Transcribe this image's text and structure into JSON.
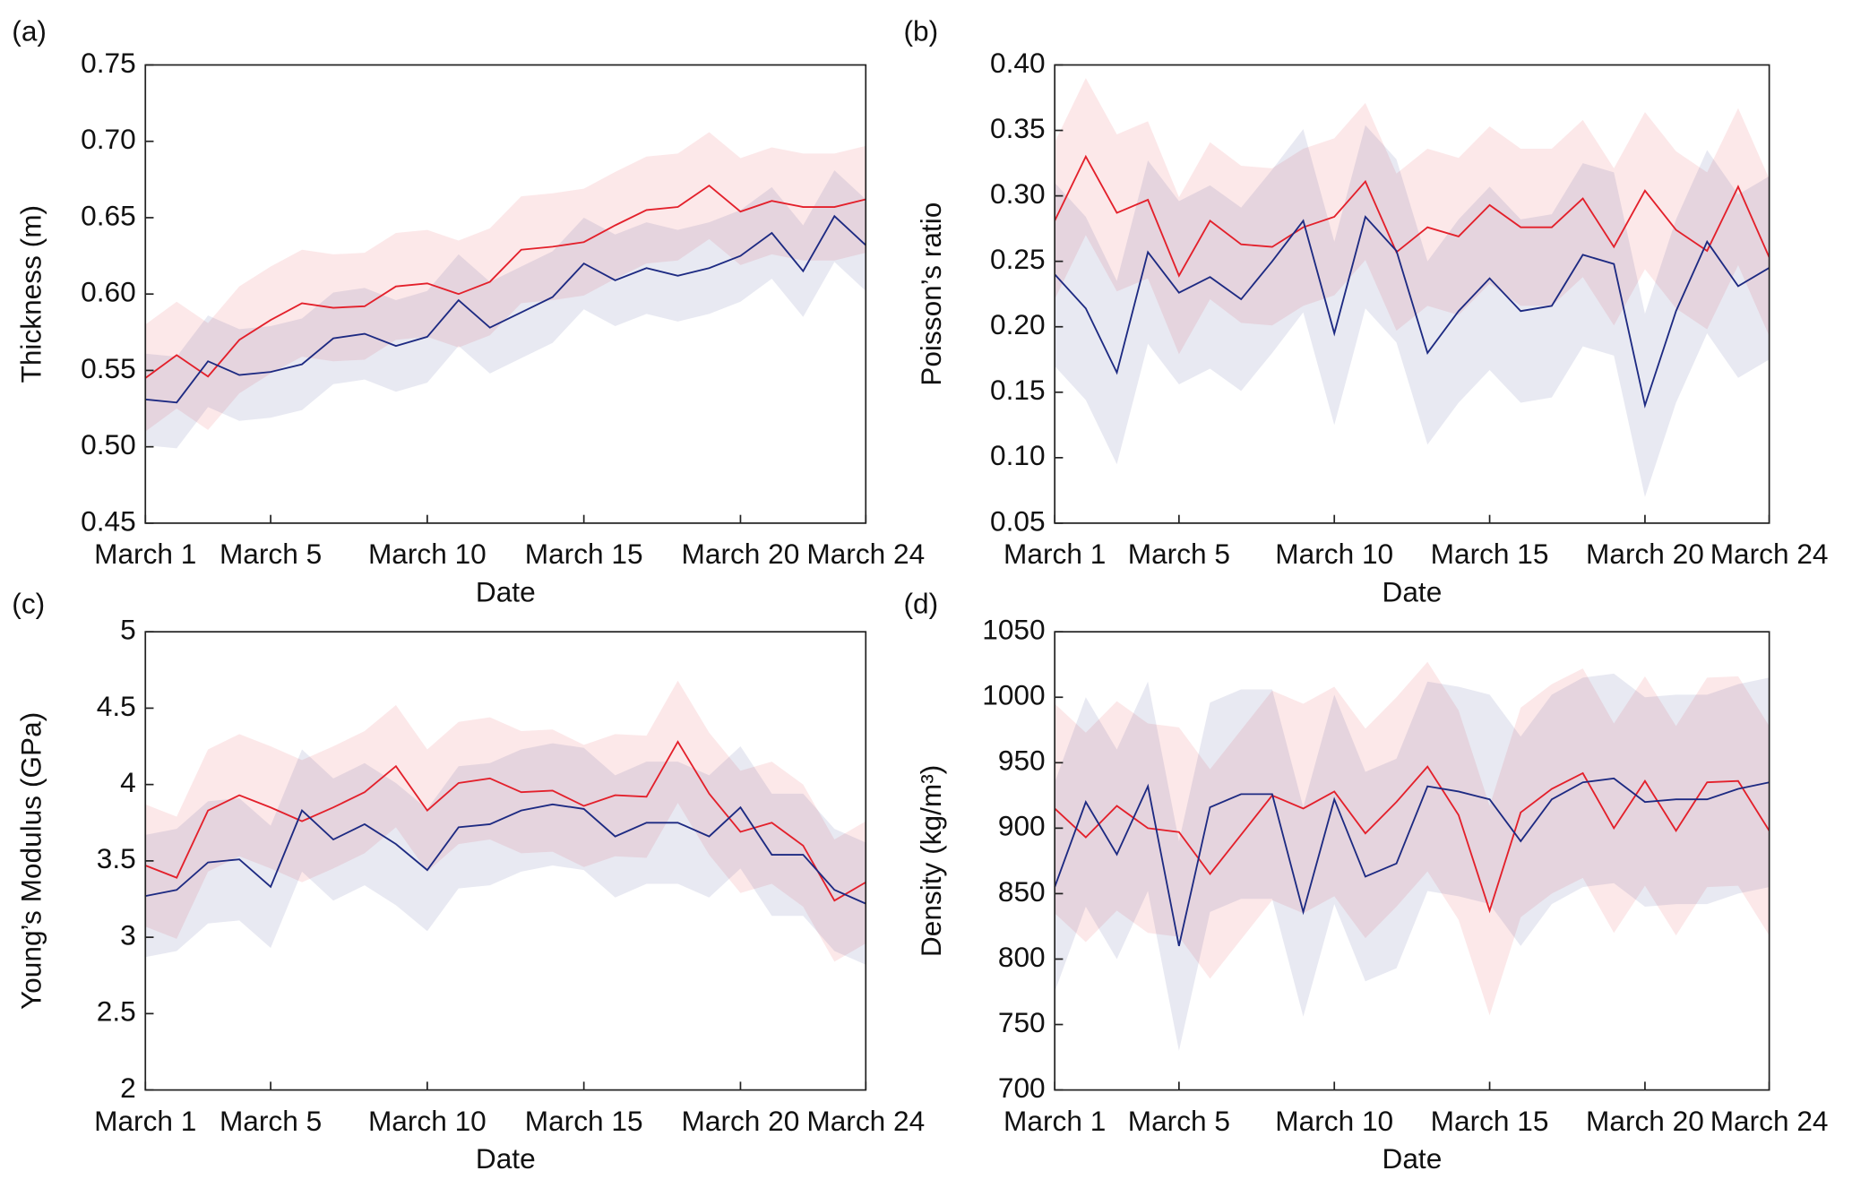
{
  "chart_data": [
    {
      "type": "line",
      "panel": "(a)",
      "y_label": "Thickness (m)",
      "x_label": "Date",
      "categories": [
        "March 1",
        null,
        null,
        null,
        "March 5",
        null,
        null,
        null,
        null,
        "March 10",
        null,
        null,
        null,
        null,
        "March 15",
        null,
        null,
        null,
        null,
        "March 20",
        null,
        null,
        null,
        "March 24"
      ],
      "ylim": [
        0.45,
        0.75
      ],
      "yticks": [
        {
          "value": 0.45,
          "label": "0.45"
        },
        {
          "value": 0.5,
          "label": "0.50"
        },
        {
          "value": 0.55,
          "label": "0.55"
        },
        {
          "value": 0.6,
          "label": "0.60"
        },
        {
          "value": 0.65,
          "label": "0.65"
        },
        {
          "value": 0.7,
          "label": "0.70"
        },
        {
          "value": 0.75,
          "label": "0.75"
        }
      ],
      "series": [
        {
          "color": "#e3202b",
          "values": [
            0.545,
            0.56,
            0.546,
            0.57,
            0.583,
            0.594,
            0.591,
            0.592,
            0.605,
            0.607,
            0.6,
            0.608,
            0.629,
            0.631,
            0.634,
            0.645,
            0.655,
            0.657,
            0.671,
            0.654,
            0.661,
            0.657,
            0.657,
            0.662
          ],
          "lower": [
            0.51,
            0.525,
            0.511,
            0.535,
            0.548,
            0.559,
            0.556,
            0.557,
            0.57,
            0.572,
            0.565,
            0.573,
            0.594,
            0.596,
            0.599,
            0.61,
            0.62,
            0.622,
            0.636,
            0.619,
            0.626,
            0.622,
            0.622,
            0.627
          ],
          "upper": [
            0.58,
            0.595,
            0.581,
            0.605,
            0.618,
            0.629,
            0.626,
            0.627,
            0.64,
            0.642,
            0.635,
            0.643,
            0.664,
            0.666,
            0.669,
            0.68,
            0.69,
            0.692,
            0.706,
            0.689,
            0.696,
            0.692,
            0.692,
            0.697
          ]
        },
        {
          "color": "#1d2a82",
          "values": [
            0.531,
            0.529,
            0.556,
            0.547,
            0.549,
            0.554,
            0.571,
            0.574,
            0.566,
            0.572,
            0.596,
            0.578,
            0.588,
            0.598,
            0.62,
            0.609,
            0.617,
            0.612,
            0.617,
            0.625,
            0.64,
            0.615,
            0.651,
            0.632
          ],
          "lower": [
            0.501,
            0.499,
            0.526,
            0.517,
            0.519,
            0.524,
            0.541,
            0.544,
            0.536,
            0.542,
            0.566,
            0.548,
            0.558,
            0.568,
            0.59,
            0.579,
            0.587,
            0.582,
            0.587,
            0.595,
            0.61,
            0.585,
            0.621,
            0.602
          ],
          "upper": [
            0.561,
            0.559,
            0.586,
            0.577,
            0.579,
            0.584,
            0.601,
            0.604,
            0.596,
            0.602,
            0.626,
            0.608,
            0.618,
            0.628,
            0.65,
            0.639,
            0.647,
            0.642,
            0.647,
            0.655,
            0.67,
            0.645,
            0.681,
            0.662
          ]
        }
      ]
    },
    {
      "type": "line",
      "panel": "(b)",
      "y_label": "Poisson’s ratio",
      "x_label": "Date",
      "categories": [
        "March 1",
        null,
        null,
        null,
        "March 5",
        null,
        null,
        null,
        null,
        "March 10",
        null,
        null,
        null,
        null,
        "March 15",
        null,
        null,
        null,
        null,
        "March 20",
        null,
        null,
        null,
        "March 24"
      ],
      "ylim": [
        0.05,
        0.4
      ],
      "yticks": [
        {
          "value": 0.05,
          "label": "0.05"
        },
        {
          "value": 0.1,
          "label": "0.10"
        },
        {
          "value": 0.15,
          "label": "0.15"
        },
        {
          "value": 0.2,
          "label": "0.20"
        },
        {
          "value": 0.25,
          "label": "0.25"
        },
        {
          "value": 0.3,
          "label": "0.30"
        },
        {
          "value": 0.35,
          "label": "0.35"
        },
        {
          "value": 0.4,
          "label": "0.40"
        }
      ],
      "series": [
        {
          "color": "#e3202b",
          "values": [
            0.281,
            0.33,
            0.287,
            0.297,
            0.239,
            0.281,
            0.263,
            0.261,
            0.276,
            0.284,
            0.311,
            0.257,
            0.276,
            0.269,
            0.293,
            0.276,
            0.276,
            0.298,
            0.261,
            0.304,
            0.274,
            0.258,
            0.307,
            0.253
          ],
          "lower": [
            0.221,
            0.27,
            0.227,
            0.237,
            0.179,
            0.221,
            0.203,
            0.201,
            0.216,
            0.224,
            0.251,
            0.197,
            0.216,
            0.209,
            0.233,
            0.216,
            0.216,
            0.238,
            0.201,
            0.244,
            0.214,
            0.198,
            0.247,
            0.193
          ],
          "upper": [
            0.341,
            0.39,
            0.347,
            0.357,
            0.299,
            0.341,
            0.323,
            0.321,
            0.336,
            0.344,
            0.371,
            0.317,
            0.336,
            0.329,
            0.353,
            0.336,
            0.336,
            0.358,
            0.321,
            0.364,
            0.334,
            0.318,
            0.367,
            0.313
          ]
        },
        {
          "color": "#1d2a82",
          "values": [
            0.24,
            0.214,
            0.165,
            0.257,
            0.226,
            0.238,
            0.221,
            0.25,
            0.281,
            0.195,
            0.284,
            0.258,
            0.18,
            0.212,
            0.237,
            0.212,
            0.216,
            0.255,
            0.248,
            0.14,
            0.212,
            0.265,
            0.231,
            0.245
          ],
          "lower": [
            0.17,
            0.144,
            0.095,
            0.187,
            0.156,
            0.168,
            0.151,
            0.18,
            0.211,
            0.125,
            0.214,
            0.188,
            0.11,
            0.142,
            0.167,
            0.142,
            0.146,
            0.185,
            0.178,
            0.07,
            0.142,
            0.195,
            0.161,
            0.175
          ],
          "upper": [
            0.31,
            0.284,
            0.235,
            0.327,
            0.296,
            0.308,
            0.291,
            0.32,
            0.351,
            0.265,
            0.354,
            0.328,
            0.25,
            0.282,
            0.307,
            0.282,
            0.286,
            0.325,
            0.318,
            0.21,
            0.282,
            0.335,
            0.301,
            0.315
          ]
        }
      ]
    },
    {
      "type": "line",
      "panel": "(c)",
      "y_label": "Young’s Modulus (GPa)",
      "x_label": "Date",
      "categories": [
        "March 1",
        null,
        null,
        null,
        "March 5",
        null,
        null,
        null,
        null,
        "March 10",
        null,
        null,
        null,
        null,
        "March 15",
        null,
        null,
        null,
        null,
        "March 20",
        null,
        null,
        null,
        "March 24"
      ],
      "ylim": [
        2,
        5
      ],
      "yticks": [
        2,
        2.5,
        3,
        3.5,
        4,
        4.5,
        5
      ],
      "series": [
        {
          "color": "#e3202b",
          "values": [
            3.47,
            3.39,
            3.83,
            3.93,
            3.85,
            3.76,
            3.85,
            3.95,
            4.12,
            3.83,
            4.01,
            4.04,
            3.95,
            3.96,
            3.86,
            3.93,
            3.92,
            4.28,
            3.94,
            3.69,
            3.75,
            3.6,
            3.24,
            3.36
          ],
          "lower": [
            3.07,
            2.99,
            3.43,
            3.53,
            3.45,
            3.36,
            3.45,
            3.55,
            3.72,
            3.43,
            3.61,
            3.64,
            3.55,
            3.56,
            3.46,
            3.53,
            3.52,
            3.88,
            3.54,
            3.29,
            3.35,
            3.2,
            2.84,
            2.96
          ],
          "upper": [
            3.87,
            3.79,
            4.23,
            4.33,
            4.25,
            4.16,
            4.25,
            4.35,
            4.52,
            4.23,
            4.41,
            4.44,
            4.35,
            4.36,
            4.26,
            4.33,
            4.32,
            4.68,
            4.34,
            4.09,
            4.15,
            4.0,
            3.64,
            3.76
          ]
        },
        {
          "color": "#1d2a82",
          "values": [
            3.27,
            3.31,
            3.49,
            3.51,
            3.33,
            3.83,
            3.64,
            3.74,
            3.61,
            3.44,
            3.72,
            3.74,
            3.83,
            3.87,
            3.84,
            3.66,
            3.75,
            3.75,
            3.66,
            3.85,
            3.54,
            3.54,
            3.31,
            3.22
          ],
          "lower": [
            2.87,
            2.91,
            3.09,
            3.11,
            2.93,
            3.43,
            3.24,
            3.34,
            3.21,
            3.04,
            3.32,
            3.34,
            3.43,
            3.47,
            3.44,
            3.26,
            3.35,
            3.35,
            3.26,
            3.45,
            3.14,
            3.14,
            2.91,
            2.82
          ],
          "upper": [
            3.67,
            3.71,
            3.89,
            3.91,
            3.73,
            4.23,
            4.04,
            4.14,
            4.01,
            3.84,
            4.12,
            4.14,
            4.23,
            4.27,
            4.24,
            4.06,
            4.15,
            4.15,
            4.06,
            4.25,
            3.94,
            3.94,
            3.71,
            3.62
          ]
        }
      ]
    },
    {
      "type": "line",
      "panel": "(d)",
      "y_label": "Density (kg/m³)",
      "x_label": "Date",
      "categories": [
        "March 1",
        null,
        null,
        null,
        "March 5",
        null,
        null,
        null,
        null,
        "March 10",
        null,
        null,
        null,
        null,
        "March 15",
        null,
        null,
        null,
        null,
        "March 20",
        null,
        null,
        null,
        "March 24"
      ],
      "ylim": [
        700,
        1050
      ],
      "yticks": [
        700,
        750,
        800,
        850,
        900,
        950,
        1000,
        1050
      ],
      "series": [
        {
          "color": "#e3202b",
          "values": [
            915,
            893,
            917,
            900,
            897,
            865,
            895,
            925,
            915,
            928,
            896,
            920,
            947,
            910,
            837,
            912,
            930,
            942,
            900,
            936,
            898,
            935,
            936,
            898
          ],
          "lower": [
            835,
            813,
            837,
            820,
            817,
            785,
            815,
            845,
            835,
            848,
            816,
            840,
            867,
            830,
            757,
            832,
            850,
            862,
            820,
            856,
            818,
            855,
            856,
            818
          ],
          "upper": [
            995,
            973,
            997,
            980,
            977,
            945,
            975,
            1005,
            995,
            1008,
            976,
            1000,
            1027,
            990,
            917,
            992,
            1010,
            1022,
            980,
            1016,
            978,
            1015,
            1016,
            978
          ]
        },
        {
          "color": "#1d2a82",
          "values": [
            855,
            920,
            880,
            932,
            810,
            916,
            926,
            926,
            836,
            922,
            863,
            873,
            932,
            928,
            922,
            890,
            922,
            935,
            938,
            920,
            922,
            922,
            930,
            935
          ],
          "lower": [
            775,
            840,
            800,
            852,
            730,
            836,
            846,
            846,
            756,
            842,
            783,
            793,
            852,
            848,
            842,
            810,
            842,
            855,
            858,
            840,
            842,
            842,
            850,
            855
          ],
          "upper": [
            935,
            1000,
            960,
            1012,
            890,
            996,
            1006,
            1006,
            916,
            1002,
            943,
            953,
            1012,
            1008,
            1002,
            970,
            1002,
            1015,
            1018,
            1000,
            1002,
            1002,
            1010,
            1015
          ]
        }
      ]
    }
  ]
}
